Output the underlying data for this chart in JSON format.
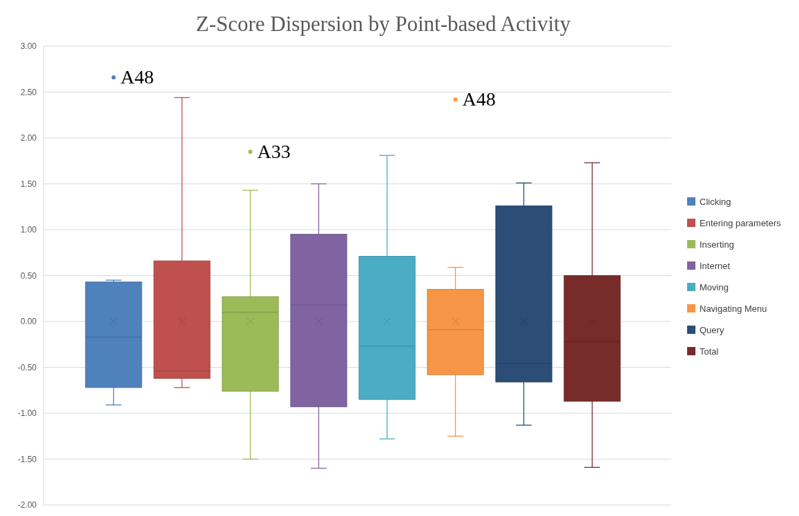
{
  "chart_data": {
    "type": "box",
    "title": "Z-Score Dispersion by Point-based Activity",
    "categories": [
      null
    ],
    "ylim": [
      -2,
      3
    ],
    "yticks": [
      {
        "value": -2,
        "label": "-2.00"
      },
      {
        "value": -1.5,
        "label": "-1.50"
      },
      {
        "value": -1,
        "label": "-1.00"
      },
      {
        "value": -0.5,
        "label": "-0.50"
      },
      {
        "value": 0,
        "label": "0.00"
      },
      {
        "value": 0.5,
        "label": "0.50"
      },
      {
        "value": 1,
        "label": "1.00"
      },
      {
        "value": 1.5,
        "label": "1.50"
      },
      {
        "value": 2,
        "label": "2.00"
      },
      {
        "value": 2.5,
        "label": "2.50"
      },
      {
        "value": 3,
        "label": "3.00"
      }
    ],
    "grid": "y",
    "legend": "right",
    "tick_labels": "y",
    "series": [
      {
        "name": "Clicking",
        "color": "#4f81bd",
        "boxes": [
          {
            "low": -0.91,
            "q1": -0.72,
            "median": -0.17,
            "q3": 0.43,
            "high": 0.45,
            "mean": 0,
            "outliers": [
              2.66
            ]
          }
        ]
      },
      {
        "name": "Entering parameters",
        "color": "#c0504d",
        "boxes": [
          {
            "low": -0.72,
            "q1": -0.62,
            "median": -0.54,
            "q3": 0.66,
            "high": 2.44,
            "mean": 0
          }
        ]
      },
      {
        "name": "Inserting",
        "color": "#9bbb59",
        "boxes": [
          {
            "low": -1.5,
            "q1": -0.76,
            "median": 0.1,
            "q3": 0.27,
            "high": 1.43,
            "mean": 0,
            "outliers": [
              1.85
            ]
          }
        ]
      },
      {
        "name": "Internet",
        "color": "#8064a2",
        "boxes": [
          {
            "low": -1.6,
            "q1": -0.93,
            "median": 0.18,
            "q3": 0.95,
            "high": 1.5,
            "mean": 0
          }
        ]
      },
      {
        "name": "Moving",
        "color": "#4bacc6",
        "boxes": [
          {
            "low": -1.28,
            "q1": -0.85,
            "median": -0.27,
            "q3": 0.71,
            "high": 1.81,
            "mean": 0
          }
        ]
      },
      {
        "name": "Navigating Menu",
        "color": "#f79646",
        "boxes": [
          {
            "low": -1.25,
            "q1": -0.58,
            "median": -0.09,
            "q3": 0.35,
            "high": 0.59,
            "mean": 0,
            "outliers": [
              2.42
            ]
          }
        ]
      },
      {
        "name": "Query",
        "color": "#2c4d75",
        "boxes": [
          {
            "low": -1.13,
            "q1": -0.66,
            "median": -0.46,
            "q3": 1.26,
            "high": 1.51,
            "mean": 0
          }
        ]
      },
      {
        "name": "Total",
        "color": "#772c2a",
        "boxes": [
          {
            "low": -1.59,
            "q1": -0.87,
            "median": -0.22,
            "q3": 0.5,
            "high": 1.73,
            "mean": 0
          }
        ]
      }
    ],
    "annotations": [
      "A48",
      "A33",
      "A48"
    ]
  }
}
